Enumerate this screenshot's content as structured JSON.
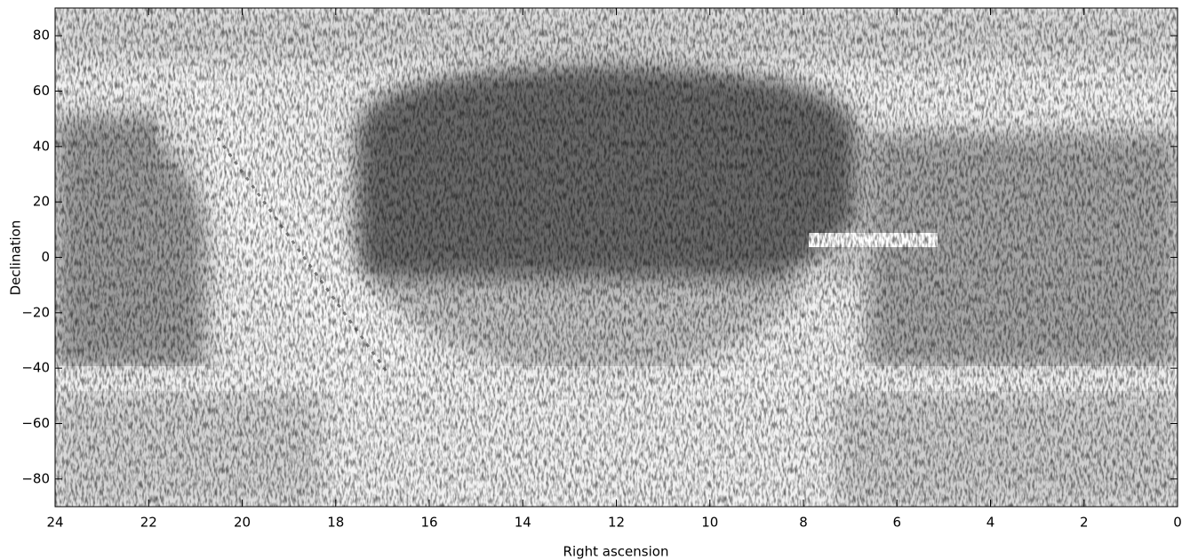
{
  "chart_data": {
    "type": "skymap",
    "xlabel": "Right ascension",
    "ylabel": "Declination",
    "xlim": [
      24,
      0
    ],
    "ylim": [
      -90,
      90
    ],
    "xticks": [
      24,
      22,
      20,
      18,
      16,
      14,
      12,
      10,
      8,
      6,
      4,
      2,
      0
    ],
    "yticks": [
      -80,
      -60,
      -40,
      -20,
      0,
      20,
      40,
      60,
      80
    ]
  }
}
